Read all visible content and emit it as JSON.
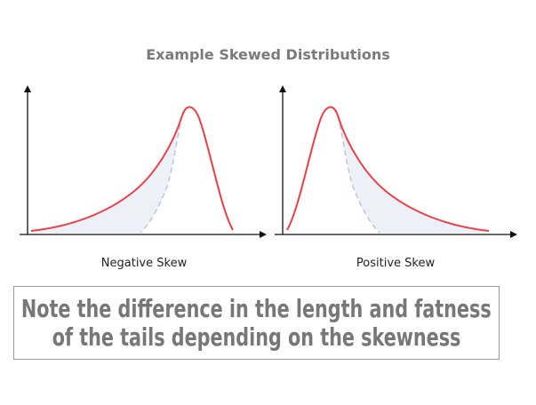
{
  "title": "Example Skewed Distributions",
  "note": {
    "line1": "Note the difference in the length and fatness",
    "line2": "of the tails depending on the skewness"
  },
  "colors": {
    "curve": "#ef3e45",
    "fill": "#eef0f7",
    "reference": "#b8bfd3",
    "axis": "#111111",
    "title": "#7a7a7a",
    "note": "#777777"
  },
  "chart_data": [
    {
      "type": "line",
      "label": "Negative Skew",
      "series": [
        {
          "values_x": [
            0,
            0.1,
            0.2,
            0.3,
            0.4,
            0.5,
            0.6,
            0.7,
            0.8,
            0.9,
            1.0
          ],
          "values_y": [
            0.02,
            0.05,
            0.12,
            0.23,
            0.38,
            0.55,
            0.74,
            0.92,
            1.0,
            0.62,
            0.03
          ]
        }
      ],
      "grid": false
    },
    {
      "type": "line",
      "label": "Positive Skew",
      "series": [
        {
          "values_x": [
            0,
            0.1,
            0.2,
            0.3,
            0.4,
            0.5,
            0.6,
            0.7,
            0.8,
            0.9,
            1.0
          ],
          "values_y": [
            0.03,
            0.62,
            1.0,
            0.92,
            0.74,
            0.55,
            0.38,
            0.23,
            0.12,
            0.05,
            0.02
          ]
        }
      ],
      "grid": false
    }
  ]
}
